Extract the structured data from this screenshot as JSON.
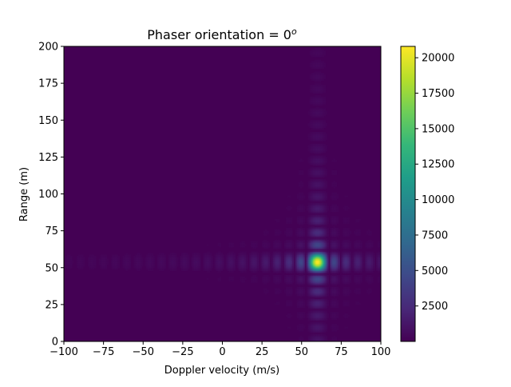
{
  "chart_data": {
    "type": "heatmap",
    "title_text": "Phaser orientation = 0",
    "title_superscript": "o",
    "xlabel": "Doppler velocity (m/s)",
    "ylabel": "Range (m)",
    "xlim": [
      -100,
      100
    ],
    "ylim": [
      0,
      200
    ],
    "x_ticks": [
      -100,
      -75,
      -50,
      -25,
      0,
      25,
      50,
      75,
      100
    ],
    "x_tick_labels": [
      "−100",
      "−75",
      "−50",
      "−25",
      "0",
      "25",
      "50",
      "75",
      "100"
    ],
    "y_ticks": [
      0,
      25,
      50,
      75,
      100,
      125,
      150,
      175,
      200
    ],
    "y_tick_labels": [
      "0",
      "25",
      "50",
      "75",
      "100",
      "125",
      "150",
      "175",
      "200"
    ],
    "colormap": "viridis",
    "colorbar": {
      "min": 0,
      "max": 20800,
      "ticks": [
        2500,
        5000,
        7500,
        10000,
        12500,
        15000,
        17500,
        20000
      ],
      "tick_labels": [
        "2500",
        "5000",
        "7500",
        "10000",
        "12500",
        "15000",
        "17500",
        "20000"
      ]
    },
    "peak": {
      "velocity": 60,
      "range": 54,
      "value": 20800
    },
    "grid": false
  }
}
